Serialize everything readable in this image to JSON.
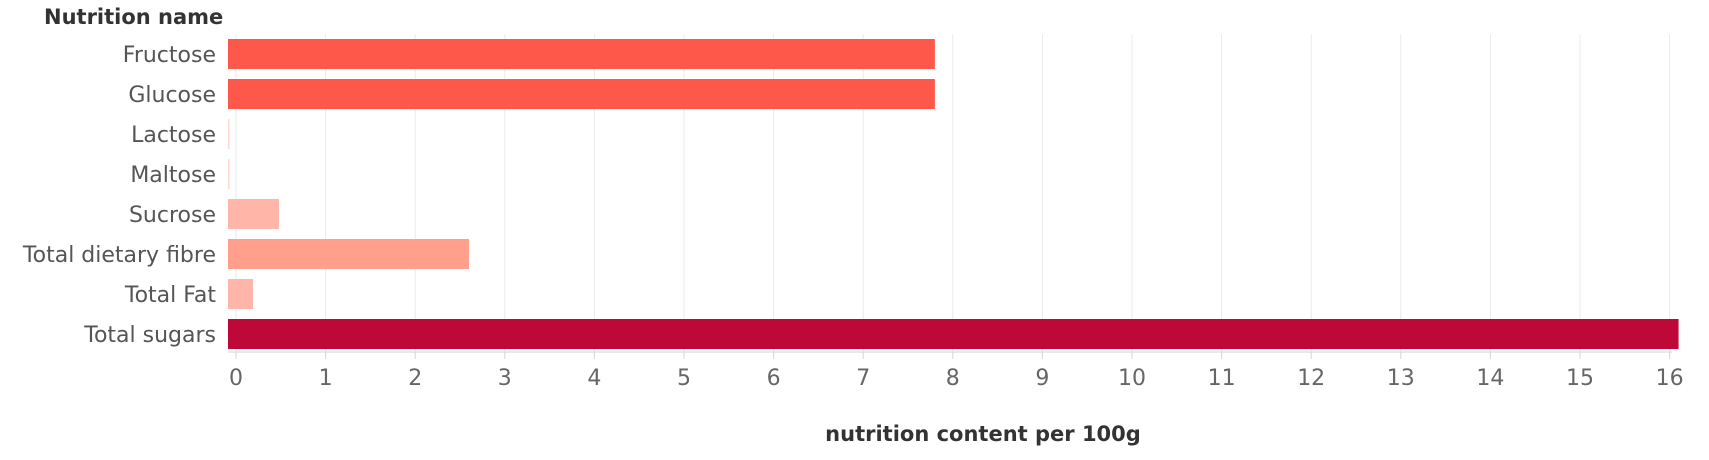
{
  "chart_data": {
    "type": "bar",
    "orientation": "horizontal",
    "row_header": "Nutrition name",
    "xlabel": "nutrition content per 100g",
    "ylabel": "",
    "categories": [
      "Fructose",
      "Glucose",
      "Lactose",
      "Maltose",
      "Sucrose",
      "Total dietary fibre",
      "Total Fat",
      "Total sugars"
    ],
    "values": [
      7.8,
      7.8,
      0.0,
      0.0,
      0.48,
      2.6,
      0.19,
      16.1
    ],
    "colors": [
      "#fe584b",
      "#fe584b",
      "#ffd9d4",
      "#ffd9d4",
      "#ffb6a9",
      "#ff9f8c",
      "#ffb6a9",
      "#bd0838"
    ],
    "xlim": [
      0,
      16
    ],
    "xticks": [
      0,
      1,
      2,
      3,
      4,
      5,
      6,
      7,
      8,
      9,
      10,
      11,
      12,
      13,
      14,
      15,
      16
    ],
    "grid": true,
    "legend": "none"
  }
}
